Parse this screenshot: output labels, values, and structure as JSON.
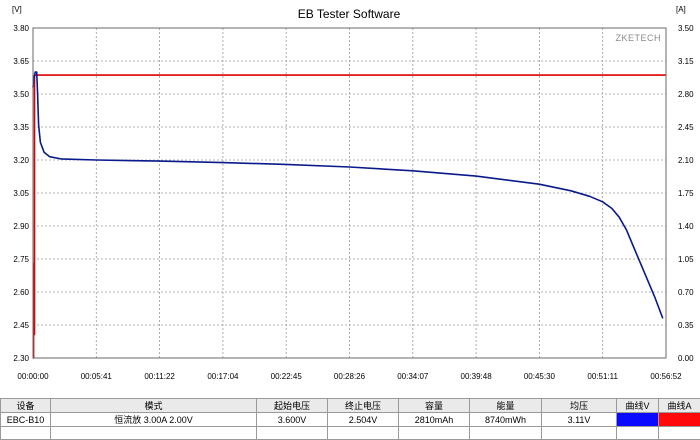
{
  "window": {
    "title": "EB Tester Software",
    "watermark": "ZKETECH"
  },
  "colors": {
    "voltage_curve": "#0a1a8c",
    "current_curve": "#e00000",
    "grid": "#9a9a9a",
    "swatch_v": "#0a0aff",
    "swatch_a": "#ff0a0a"
  },
  "chart_data": {
    "type": "line",
    "title": "EB Tester Software",
    "left_axis": {
      "unit_label": "[V]",
      "range": [
        2.3,
        3.8
      ],
      "ticks": [
        "2.30",
        "2.45",
        "2.60",
        "2.75",
        "2.90",
        "3.05",
        "3.20",
        "3.35",
        "3.50",
        "3.65",
        "3.80"
      ]
    },
    "right_axis": {
      "unit_label": "[A]",
      "range": [
        0.0,
        3.5
      ],
      "ticks": [
        "0.00",
        "0.35",
        "0.70",
        "1.05",
        "1.40",
        "1.75",
        "2.10",
        "2.45",
        "2.80",
        "3.15",
        "3.50"
      ]
    },
    "x_axis": {
      "range_seconds": [
        0,
        3412
      ],
      "ticks": [
        "00:00:00",
        "00:05:41",
        "00:11:22",
        "00:17:04",
        "00:22:45",
        "00:28:26",
        "00:34:07",
        "00:39:48",
        "00:45:30",
        "00:51:11",
        "00:56:52"
      ]
    },
    "grid": true,
    "series": [
      {
        "axis": "left",
        "points": [
          [
            0,
            3.53
          ],
          [
            5,
            3.57
          ],
          [
            12,
            3.6
          ],
          [
            20,
            3.6
          ],
          [
            25,
            3.5
          ],
          [
            30,
            3.36
          ],
          [
            40,
            3.28
          ],
          [
            60,
            3.235
          ],
          [
            90,
            3.215
          ],
          [
            150,
            3.205
          ],
          [
            341,
            3.2
          ],
          [
            682,
            3.195
          ],
          [
            1023,
            3.188
          ],
          [
            1364,
            3.18
          ],
          [
            1706,
            3.168
          ],
          [
            2047,
            3.151
          ],
          [
            2388,
            3.127
          ],
          [
            2729,
            3.09
          ],
          [
            2900,
            3.06
          ],
          [
            3000,
            3.035
          ],
          [
            3070,
            3.01
          ],
          [
            3120,
            2.98
          ],
          [
            3160,
            2.94
          ],
          [
            3200,
            2.88
          ],
          [
            3250,
            2.78
          ],
          [
            3300,
            2.68
          ],
          [
            3350,
            2.58
          ],
          [
            3395,
            2.48
          ]
        ]
      },
      {
        "axis": "right",
        "points": [
          [
            0,
            0.0
          ],
          [
            3,
            0.0
          ],
          [
            3,
            1.0
          ],
          [
            5,
            1.0
          ],
          [
            5,
            0.25
          ],
          [
            8,
            0.25
          ],
          [
            8,
            3.0
          ],
          [
            3412,
            3.0
          ]
        ]
      }
    ]
  },
  "info_table": {
    "headers": [
      "设备",
      "模式",
      "起始电压",
      "终止电压",
      "容量",
      "能量",
      "均压",
      "曲线V",
      "曲线A"
    ],
    "values": [
      "EBC-B10",
      "恒流放  3.00A  2.00V",
      "3.600V",
      "2.504V",
      "2810mAh",
      "8740mWh",
      "3.11V",
      "",
      ""
    ]
  }
}
